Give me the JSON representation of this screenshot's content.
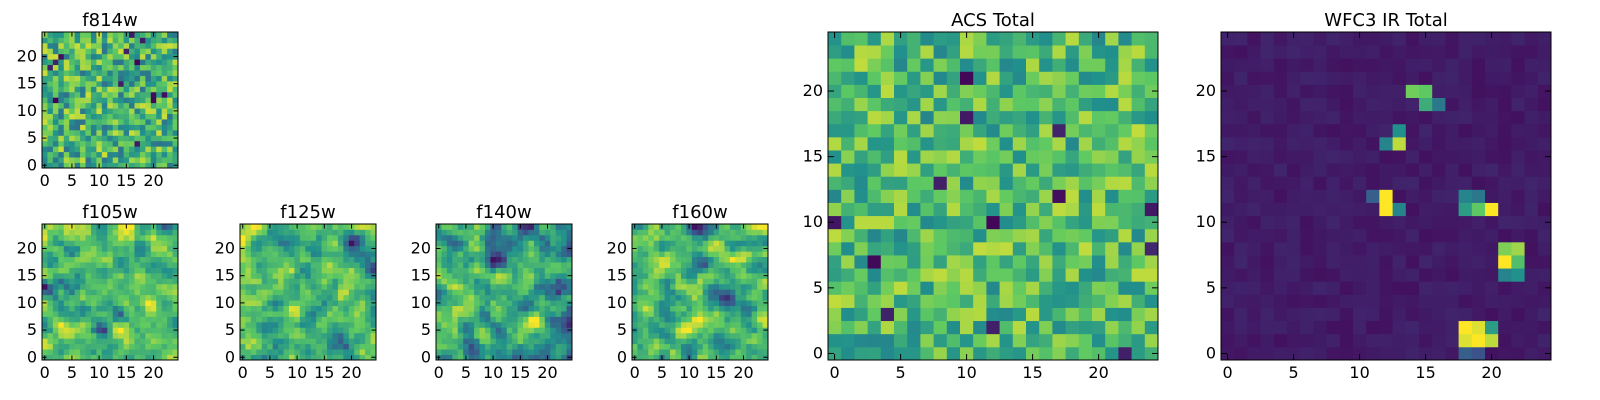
{
  "figure": {
    "description_type": "multi-panel heatmap figure",
    "colors": {
      "colormap": "viridis",
      "stops": [
        "#440154",
        "#3b528b",
        "#21918c",
        "#5ec962",
        "#fde725"
      ],
      "axis": "#000000",
      "background": "#ffffff"
    }
  },
  "chart_data": [
    {
      "id": "f814w",
      "type": "heatmap",
      "title": "f814w",
      "grid": [
        25,
        25
      ],
      "xlim": [
        0,
        24
      ],
      "ylim": [
        0,
        24
      ],
      "xticks": [
        0,
        5,
        10,
        15,
        20
      ],
      "yticks": [
        0,
        5,
        10,
        15,
        20
      ],
      "xtick_labels": [
        "0",
        "5",
        "10",
        "15",
        "20"
      ],
      "ytick_labels": [
        "0",
        "5",
        "10",
        "15",
        "20"
      ],
      "value_range": [
        0,
        1
      ],
      "pattern": "noise",
      "seed": 11,
      "noise_mean": 0.65,
      "noise_spread": 0.55,
      "smooth": 0
    },
    {
      "id": "f105w",
      "type": "heatmap",
      "title": "f105w",
      "grid": [
        25,
        25
      ],
      "xlim": [
        0,
        24
      ],
      "ylim": [
        0,
        24
      ],
      "xticks": [
        0,
        5,
        10,
        15,
        20
      ],
      "yticks": [
        0,
        5,
        10,
        15,
        20
      ],
      "xtick_labels": [
        "0",
        "5",
        "10",
        "15",
        "20"
      ],
      "ytick_labels": [
        "0",
        "5",
        "10",
        "15",
        "20"
      ],
      "value_range": [
        0,
        1
      ],
      "pattern": "noise",
      "seed": 23,
      "noise_mean": 0.72,
      "noise_spread": 0.5,
      "smooth": 1
    },
    {
      "id": "f125w",
      "type": "heatmap",
      "title": "f125w",
      "grid": [
        25,
        25
      ],
      "xlim": [
        0,
        24
      ],
      "ylim": [
        0,
        24
      ],
      "xticks": [
        0,
        5,
        10,
        15,
        20
      ],
      "yticks": [
        0,
        5,
        10,
        15,
        20
      ],
      "xtick_labels": [
        "0",
        "5",
        "10",
        "15",
        "20"
      ],
      "ytick_labels": [
        "0",
        "5",
        "10",
        "15",
        "20"
      ],
      "value_range": [
        0,
        1
      ],
      "pattern": "noise",
      "seed": 37,
      "noise_mean": 0.6,
      "noise_spread": 0.6,
      "smooth": 1
    },
    {
      "id": "f140w",
      "type": "heatmap",
      "title": "f140w",
      "grid": [
        25,
        25
      ],
      "xlim": [
        0,
        24
      ],
      "ylim": [
        0,
        24
      ],
      "xticks": [
        0,
        5,
        10,
        15,
        20
      ],
      "yticks": [
        0,
        5,
        10,
        15,
        20
      ],
      "xtick_labels": [
        "0",
        "5",
        "10",
        "15",
        "20"
      ],
      "ytick_labels": [
        "0",
        "5",
        "10",
        "15",
        "20"
      ],
      "value_range": [
        0,
        1
      ],
      "pattern": "noise",
      "seed": 53,
      "noise_mean": 0.66,
      "noise_spread": 0.6,
      "smooth": 1
    },
    {
      "id": "f160w",
      "type": "heatmap",
      "title": "f160w",
      "grid": [
        25,
        25
      ],
      "xlim": [
        0,
        24
      ],
      "ylim": [
        0,
        24
      ],
      "xticks": [
        0,
        5,
        10,
        15,
        20
      ],
      "yticks": [
        0,
        5,
        10,
        15,
        20
      ],
      "xtick_labels": [
        "0",
        "5",
        "10",
        "15",
        "20"
      ],
      "ytick_labels": [
        "0",
        "5",
        "10",
        "15",
        "20"
      ],
      "value_range": [
        0,
        1
      ],
      "pattern": "noise",
      "seed": 71,
      "noise_mean": 0.62,
      "noise_spread": 0.65,
      "smooth": 1
    },
    {
      "id": "acs_total",
      "type": "heatmap",
      "title": "ACS Total",
      "grid": [
        25,
        25
      ],
      "xlim": [
        0,
        24
      ],
      "ylim": [
        0,
        24
      ],
      "xticks": [
        0,
        5,
        10,
        15,
        20
      ],
      "yticks": [
        0,
        5,
        10,
        15,
        20
      ],
      "xtick_labels": [
        "0",
        "5",
        "10",
        "15",
        "20"
      ],
      "ytick_labels": [
        "0",
        "5",
        "10",
        "15",
        "20"
      ],
      "value_range": [
        0,
        1
      ],
      "pattern": "noise",
      "seed": 97,
      "noise_mean": 0.68,
      "noise_spread": 0.45,
      "smooth": 0
    },
    {
      "id": "wfc3_ir_total",
      "type": "heatmap",
      "title": "WFC3 IR Total",
      "grid": [
        25,
        25
      ],
      "xlim": [
        0,
        24
      ],
      "ylim": [
        0,
        24
      ],
      "xticks": [
        0,
        5,
        10,
        15,
        20
      ],
      "yticks": [
        0,
        5,
        10,
        15,
        20
      ],
      "xtick_labels": [
        "0",
        "5",
        "10",
        "15",
        "20"
      ],
      "ytick_labels": [
        "0",
        "5",
        "10",
        "15",
        "20"
      ],
      "value_range": [
        0,
        1
      ],
      "pattern": "sparse",
      "seed": 131,
      "background_level": 0.05,
      "hotspots": [
        {
          "x": 14,
          "y": 20,
          "v": 0.78
        },
        {
          "x": 15,
          "y": 20,
          "v": 0.75
        },
        {
          "x": 15,
          "y": 19,
          "v": 0.62
        },
        {
          "x": 16,
          "y": 19,
          "v": 0.4
        },
        {
          "x": 13,
          "y": 17,
          "v": 0.5
        },
        {
          "x": 12,
          "y": 16,
          "v": 0.45
        },
        {
          "x": 13,
          "y": 16,
          "v": 0.9
        },
        {
          "x": 12,
          "y": 12,
          "v": 1.0
        },
        {
          "x": 12,
          "y": 11,
          "v": 1.0
        },
        {
          "x": 11,
          "y": 12,
          "v": 0.3
        },
        {
          "x": 13,
          "y": 11,
          "v": 0.45
        },
        {
          "x": 18,
          "y": 12,
          "v": 0.45
        },
        {
          "x": 19,
          "y": 12,
          "v": 0.4
        },
        {
          "x": 18,
          "y": 11,
          "v": 0.55
        },
        {
          "x": 19,
          "y": 11,
          "v": 0.75
        },
        {
          "x": 20,
          "y": 11,
          "v": 1.0
        },
        {
          "x": 21,
          "y": 8,
          "v": 0.8
        },
        {
          "x": 22,
          "y": 8,
          "v": 0.85
        },
        {
          "x": 21,
          "y": 7,
          "v": 1.0
        },
        {
          "x": 22,
          "y": 7,
          "v": 0.7
        },
        {
          "x": 21,
          "y": 6,
          "v": 0.45
        },
        {
          "x": 22,
          "y": 6,
          "v": 0.5
        },
        {
          "x": 18,
          "y": 2,
          "v": 1.0
        },
        {
          "x": 19,
          "y": 2,
          "v": 0.95
        },
        {
          "x": 20,
          "y": 2,
          "v": 0.55
        },
        {
          "x": 18,
          "y": 1,
          "v": 0.95
        },
        {
          "x": 19,
          "y": 1,
          "v": 1.0
        },
        {
          "x": 20,
          "y": 1,
          "v": 0.9
        },
        {
          "x": 18,
          "y": 0,
          "v": 0.3
        },
        {
          "x": 19,
          "y": 0,
          "v": 0.25
        }
      ]
    }
  ]
}
